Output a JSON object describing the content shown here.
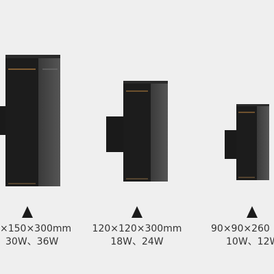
{
  "products": [
    {
      "size": "×150×300mm",
      "power": "30W、36W"
    },
    {
      "size": "120×120×300mm",
      "power": "18W、24W"
    },
    {
      "size": "90×90×260",
      "power": "10W、12W"
    }
  ]
}
